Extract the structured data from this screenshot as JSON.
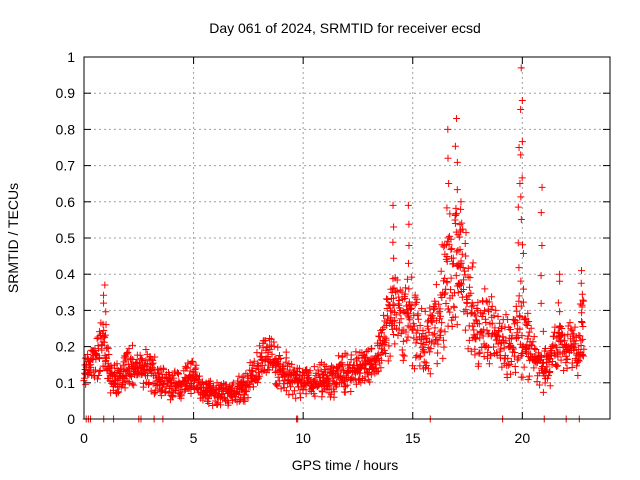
{
  "chart_data": {
    "type": "scatter",
    "title": "Day 061 of 2024, SRMTID for receiver ecsd",
    "xlabel": "GPS time / hours",
    "ylabel": "SRMTID / TECUs",
    "xlim": [
      0,
      24
    ],
    "ylim": [
      0,
      1
    ],
    "xticks": [
      0,
      5,
      10,
      15,
      20
    ],
    "xtick_labels": [
      "0",
      "5",
      "10",
      "15",
      "20"
    ],
    "yticks": [
      0,
      0.1,
      0.2,
      0.3,
      0.4,
      0.5,
      0.6,
      0.7,
      0.8,
      0.9,
      1
    ],
    "ytick_labels": [
      "0",
      "0.1",
      "0.2",
      "0.3",
      "0.4",
      "0.5",
      "0.6",
      "0.7",
      "0.8",
      "0.9",
      "1"
    ],
    "grid": true,
    "marker": "plus",
    "color": "#ff0000",
    "trend": {
      "x": [
        0,
        0.5,
        0.9,
        1.2,
        1.6,
        2.0,
        2.5,
        3.0,
        3.5,
        4.0,
        4.5,
        5.0,
        5.5,
        6.0,
        6.5,
        7.0,
        7.5,
        8.0,
        8.5,
        9.0,
        9.5,
        10.0,
        10.5,
        11.0,
        11.5,
        12.0,
        12.5,
        13.0,
        13.5,
        14.0,
        14.5,
        15.0,
        15.5,
        16.0,
        16.5,
        17.0,
        17.5,
        18.0,
        18.5,
        19.0,
        19.5,
        20.0,
        20.5,
        21.0,
        21.5,
        22.0,
        22.5,
        22.8
      ],
      "y": [
        0.13,
        0.17,
        0.22,
        0.12,
        0.1,
        0.15,
        0.14,
        0.13,
        0.11,
        0.09,
        0.1,
        0.12,
        0.08,
        0.07,
        0.07,
        0.08,
        0.1,
        0.16,
        0.18,
        0.13,
        0.12,
        0.1,
        0.1,
        0.11,
        0.12,
        0.13,
        0.14,
        0.15,
        0.18,
        0.3,
        0.28,
        0.27,
        0.2,
        0.27,
        0.35,
        0.45,
        0.35,
        0.25,
        0.24,
        0.2,
        0.22,
        0.25,
        0.17,
        0.14,
        0.19,
        0.2,
        0.18,
        0.27
      ],
      "spread": [
        0.05,
        0.06,
        0.07,
        0.05,
        0.05,
        0.05,
        0.05,
        0.05,
        0.05,
        0.04,
        0.04,
        0.04,
        0.03,
        0.03,
        0.03,
        0.03,
        0.04,
        0.05,
        0.05,
        0.05,
        0.05,
        0.04,
        0.04,
        0.04,
        0.05,
        0.05,
        0.05,
        0.05,
        0.06,
        0.1,
        0.1,
        0.1,
        0.08,
        0.1,
        0.15,
        0.17,
        0.13,
        0.1,
        0.09,
        0.07,
        0.1,
        0.12,
        0.06,
        0.06,
        0.07,
        0.06,
        0.07,
        0.08
      ]
    },
    "peaks": [
      {
        "x": 0.95,
        "y": 0.37
      },
      {
        "x": 14.1,
        "y": 0.59
      },
      {
        "x": 14.8,
        "y": 0.59
      },
      {
        "x": 16.6,
        "y": 0.8
      },
      {
        "x": 17.0,
        "y": 0.83
      },
      {
        "x": 17.2,
        "y": 0.6
      },
      {
        "x": 19.85,
        "y": 0.75
      },
      {
        "x": 19.95,
        "y": 0.97
      },
      {
        "x": 20.0,
        "y": 0.88
      },
      {
        "x": 20.9,
        "y": 0.64
      },
      {
        "x": 21.7,
        "y": 0.4
      },
      {
        "x": 22.7,
        "y": 0.41
      }
    ],
    "zero_points_x": [
      0.1,
      0.2,
      0.3,
      0.9,
      1.35,
      2.5,
      2.6,
      3.2,
      3.6,
      9.7,
      9.75,
      15.8,
      19.1,
      21.0,
      22.0,
      22.6
    ]
  }
}
